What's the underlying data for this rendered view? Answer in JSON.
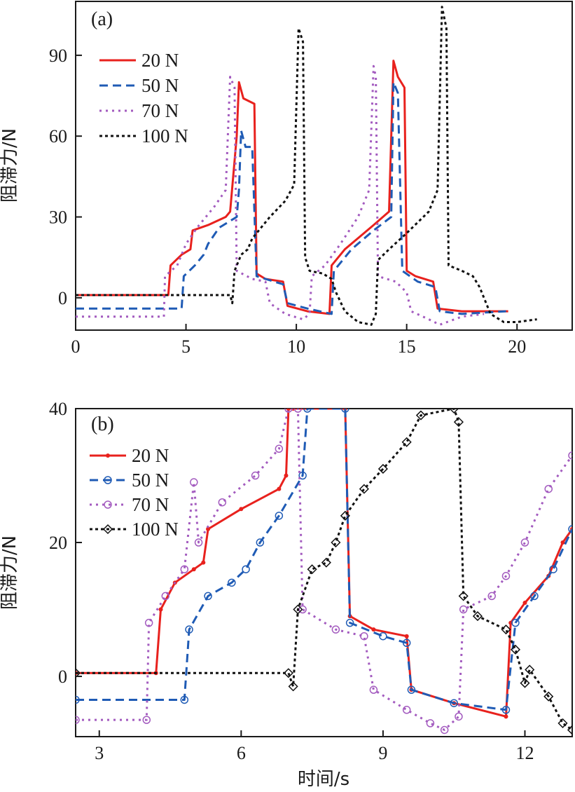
{
  "chart_data": [
    {
      "type": "line",
      "panel_label": "(a)",
      "ylabel": "阻滞力/N",
      "xlabel": "",
      "xlim": [
        0,
        22.5
      ],
      "ylim": [
        -12,
        110
      ],
      "xticks": [
        0,
        5,
        10,
        15,
        20
      ],
      "yticks": [
        0,
        30,
        60,
        90
      ],
      "xtick_labels": [
        "0",
        "5",
        "10",
        "15",
        "20"
      ],
      "ytick_labels": [
        "0",
        "30",
        "60",
        "90"
      ],
      "legend_position": "top-left",
      "series": [
        {
          "name": "20 N",
          "color": "#e8211d",
          "dash": "",
          "marker": "none",
          "points": [
            [
              0,
              1
            ],
            [
              4.2,
              1
            ],
            [
              4.3,
              12
            ],
            [
              4.8,
              16
            ],
            [
              5.2,
              18
            ],
            [
              5.3,
              25
            ],
            [
              6.0,
              27
            ],
            [
              6.8,
              30
            ],
            [
              7.0,
              32
            ],
            [
              7.3,
              60
            ],
            [
              7.4,
              80
            ],
            [
              7.6,
              74
            ],
            [
              8.1,
              72
            ],
            [
              8.2,
              9
            ],
            [
              8.6,
              7
            ],
            [
              9.4,
              6
            ],
            [
              9.6,
              -3
            ],
            [
              10.5,
              -5
            ],
            [
              11.5,
              -6
            ],
            [
              11.6,
              12
            ],
            [
              12.2,
              18
            ],
            [
              13.5,
              27
            ],
            [
              14.2,
              32
            ],
            [
              14.4,
              88
            ],
            [
              14.6,
              82
            ],
            [
              14.9,
              78
            ],
            [
              15.0,
              10
            ],
            [
              15.4,
              8
            ],
            [
              16.2,
              6
            ],
            [
              16.4,
              -4
            ],
            [
              17.5,
              -5
            ],
            [
              19.6,
              -5
            ]
          ]
        },
        {
          "name": "50 N",
          "color": "#1f5bb5",
          "dash": "12,7",
          "marker": "none",
          "points": [
            [
              0,
              -4
            ],
            [
              4.8,
              -4
            ],
            [
              4.9,
              8
            ],
            [
              5.4,
              12
            ],
            [
              5.8,
              16
            ],
            [
              6.0,
              20
            ],
            [
              6.5,
              26
            ],
            [
              7.3,
              30
            ],
            [
              7.4,
              40
            ],
            [
              7.5,
              62
            ],
            [
              7.7,
              56
            ],
            [
              8.0,
              56
            ],
            [
              8.2,
              8
            ],
            [
              9.0,
              6
            ],
            [
              9.4,
              5
            ],
            [
              9.6,
              -2
            ],
            [
              10.5,
              -4
            ],
            [
              11.6,
              -6
            ],
            [
              11.7,
              10
            ],
            [
              12.5,
              18
            ],
            [
              13.5,
              25
            ],
            [
              14.3,
              30
            ],
            [
              14.4,
              80
            ],
            [
              14.6,
              76
            ],
            [
              14.8,
              10
            ],
            [
              15.5,
              6
            ],
            [
              16.3,
              4
            ],
            [
              16.5,
              -5
            ],
            [
              17.5,
              -6
            ],
            [
              19.5,
              -5
            ]
          ]
        },
        {
          "name": "70 N",
          "color": "#a35bbf",
          "dash": "3,6",
          "marker": "none",
          "points": [
            [
              0,
              -7
            ],
            [
              4.0,
              -7
            ],
            [
              4.05,
              8
            ],
            [
              4.6,
              12
            ],
            [
              5.0,
              20
            ],
            [
              5.5,
              26
            ],
            [
              6.3,
              34
            ],
            [
              6.8,
              40
            ],
            [
              7.0,
              82
            ],
            [
              7.2,
              78
            ],
            [
              7.3,
              10
            ],
            [
              8.0,
              7
            ],
            [
              8.6,
              6
            ],
            [
              8.8,
              -2
            ],
            [
              9.5,
              -6
            ],
            [
              10.3,
              -8
            ],
            [
              10.6,
              -6
            ],
            [
              10.7,
              8
            ],
            [
              11.3,
              12
            ],
            [
              12.0,
              20
            ],
            [
              12.8,
              30
            ],
            [
              13.3,
              40
            ],
            [
              13.5,
              86
            ],
            [
              13.6,
              82
            ],
            [
              13.7,
              8
            ],
            [
              14.5,
              6
            ],
            [
              15.0,
              2
            ],
            [
              15.2,
              -5
            ],
            [
              16.0,
              -8
            ],
            [
              16.5,
              -10
            ],
            [
              17.5,
              -7
            ],
            [
              18.5,
              -6
            ]
          ]
        },
        {
          "name": "100 N",
          "color": "#111111",
          "dash": "4,4",
          "marker": "none",
          "points": [
            [
              0,
              1
            ],
            [
              7.0,
              1
            ],
            [
              7.1,
              -2
            ],
            [
              7.2,
              10
            ],
            [
              7.5,
              16
            ],
            [
              7.8,
              18
            ],
            [
              8.0,
              22
            ],
            [
              8.3,
              25
            ],
            [
              8.8,
              30
            ],
            [
              9.5,
              36
            ],
            [
              9.9,
              42
            ],
            [
              10.1,
              100
            ],
            [
              10.3,
              95
            ],
            [
              10.4,
              15
            ],
            [
              10.6,
              10
            ],
            [
              11.2,
              9
            ],
            [
              11.6,
              7
            ],
            [
              11.8,
              2
            ],
            [
              12.2,
              -5
            ],
            [
              12.8,
              -9
            ],
            [
              13.4,
              -10
            ],
            [
              13.6,
              -6
            ],
            [
              13.7,
              14
            ],
            [
              14.2,
              18
            ],
            [
              15.0,
              24
            ],
            [
              16.0,
              32
            ],
            [
              16.4,
              40
            ],
            [
              16.6,
              108
            ],
            [
              16.8,
              100
            ],
            [
              16.9,
              12
            ],
            [
              17.5,
              10
            ],
            [
              18.0,
              8
            ],
            [
              18.3,
              4
            ],
            [
              18.5,
              0
            ],
            [
              18.8,
              -6
            ],
            [
              19.4,
              -9
            ],
            [
              20.0,
              -9
            ],
            [
              20.9,
              -8
            ]
          ]
        }
      ]
    },
    {
      "type": "line",
      "panel_label": "(b)",
      "ylabel": "阻滞力/N",
      "xlabel": "时间/s",
      "xlim": [
        2.5,
        13
      ],
      "ylim": [
        -9,
        40
      ],
      "xticks": [
        3,
        6,
        9,
        12
      ],
      "yticks": [
        0,
        20,
        40
      ],
      "xtick_labels": [
        "3",
        "6",
        "9",
        "12"
      ],
      "ytick_labels": [
        "0",
        "20",
        "40"
      ],
      "legend_position": "top-left",
      "series": [
        {
          "name": "20 N",
          "color": "#e8211d",
          "dash": "",
          "marker": "dot",
          "points": [
            [
              2.5,
              0.5
            ],
            [
              4.2,
              0.5
            ],
            [
              4.3,
              10
            ],
            [
              4.6,
              14
            ],
            [
              5.0,
              16
            ],
            [
              5.2,
              17
            ],
            [
              5.3,
              22
            ],
            [
              6.0,
              25
            ],
            [
              6.8,
              28
            ],
            [
              6.95,
              30
            ],
            [
              7.0,
              40
            ],
            [
              7.1,
              40
            ],
            [
              8.2,
              40
            ],
            [
              8.3,
              9
            ],
            [
              8.8,
              7
            ],
            [
              9.5,
              6
            ],
            [
              9.6,
              -2
            ],
            [
              10.5,
              -4
            ],
            [
              11.6,
              -6
            ],
            [
              11.7,
              8
            ],
            [
              12.0,
              11
            ],
            [
              12.5,
              15
            ],
            [
              12.8,
              20
            ],
            [
              13,
              22
            ]
          ]
        },
        {
          "name": "50 N",
          "color": "#1f5bb5",
          "dash": "12,7",
          "marker": "circle",
          "points": [
            [
              2.5,
              -3.5
            ],
            [
              4.8,
              -3.5
            ],
            [
              4.9,
              7
            ],
            [
              5.3,
              12
            ],
            [
              5.8,
              14
            ],
            [
              6.1,
              16
            ],
            [
              6.4,
              20
            ],
            [
              6.8,
              24
            ],
            [
              7.3,
              30
            ],
            [
              7.4,
              40
            ],
            [
              8.2,
              40
            ],
            [
              8.3,
              8
            ],
            [
              9.0,
              6
            ],
            [
              9.5,
              5
            ],
            [
              9.6,
              -2
            ],
            [
              10.5,
              -4
            ],
            [
              11.6,
              -5
            ],
            [
              11.8,
              8
            ],
            [
              12.2,
              12
            ],
            [
              12.6,
              16
            ],
            [
              13,
              22
            ]
          ]
        },
        {
          "name": "70 N",
          "color": "#a35bbf",
          "dash": "3,6",
          "marker": "circle",
          "points": [
            [
              2.5,
              -6.5
            ],
            [
              4.0,
              -6.5
            ],
            [
              4.05,
              8
            ],
            [
              4.4,
              12
            ],
            [
              4.8,
              16
            ],
            [
              5.0,
              29
            ],
            [
              5.1,
              20
            ],
            [
              5.6,
              26
            ],
            [
              6.3,
              30
            ],
            [
              6.8,
              34
            ],
            [
              7.0,
              40
            ],
            [
              7.2,
              40
            ],
            [
              7.3,
              10
            ],
            [
              8.0,
              7
            ],
            [
              8.6,
              6
            ],
            [
              8.8,
              -2
            ],
            [
              9.5,
              -5
            ],
            [
              10.0,
              -7
            ],
            [
              10.3,
              -8
            ],
            [
              10.6,
              -6
            ],
            [
              10.7,
              10
            ],
            [
              11.3,
              12
            ],
            [
              11.6,
              15
            ],
            [
              12.0,
              20
            ],
            [
              12.5,
              28
            ],
            [
              13,
              33
            ]
          ]
        },
        {
          "name": "100 N",
          "color": "#111111",
          "dash": "4,4",
          "marker": "diamond",
          "points": [
            [
              2.5,
              0.5
            ],
            [
              7.0,
              0.5
            ],
            [
              7.1,
              -1.5
            ],
            [
              7.2,
              10
            ],
            [
              7.5,
              16
            ],
            [
              7.8,
              17
            ],
            [
              8.0,
              20
            ],
            [
              8.2,
              24
            ],
            [
              8.6,
              28
            ],
            [
              9.0,
              31
            ],
            [
              9.5,
              35
            ],
            [
              9.8,
              39
            ],
            [
              10.5,
              40
            ],
            [
              10.6,
              38
            ],
            [
              10.7,
              12
            ],
            [
              11.0,
              9
            ],
            [
              11.6,
              7
            ],
            [
              11.8,
              4
            ],
            [
              12.0,
              -1
            ],
            [
              12.1,
              1
            ],
            [
              12.5,
              -3
            ],
            [
              12.8,
              -7
            ],
            [
              13,
              -8
            ]
          ]
        }
      ]
    }
  ]
}
